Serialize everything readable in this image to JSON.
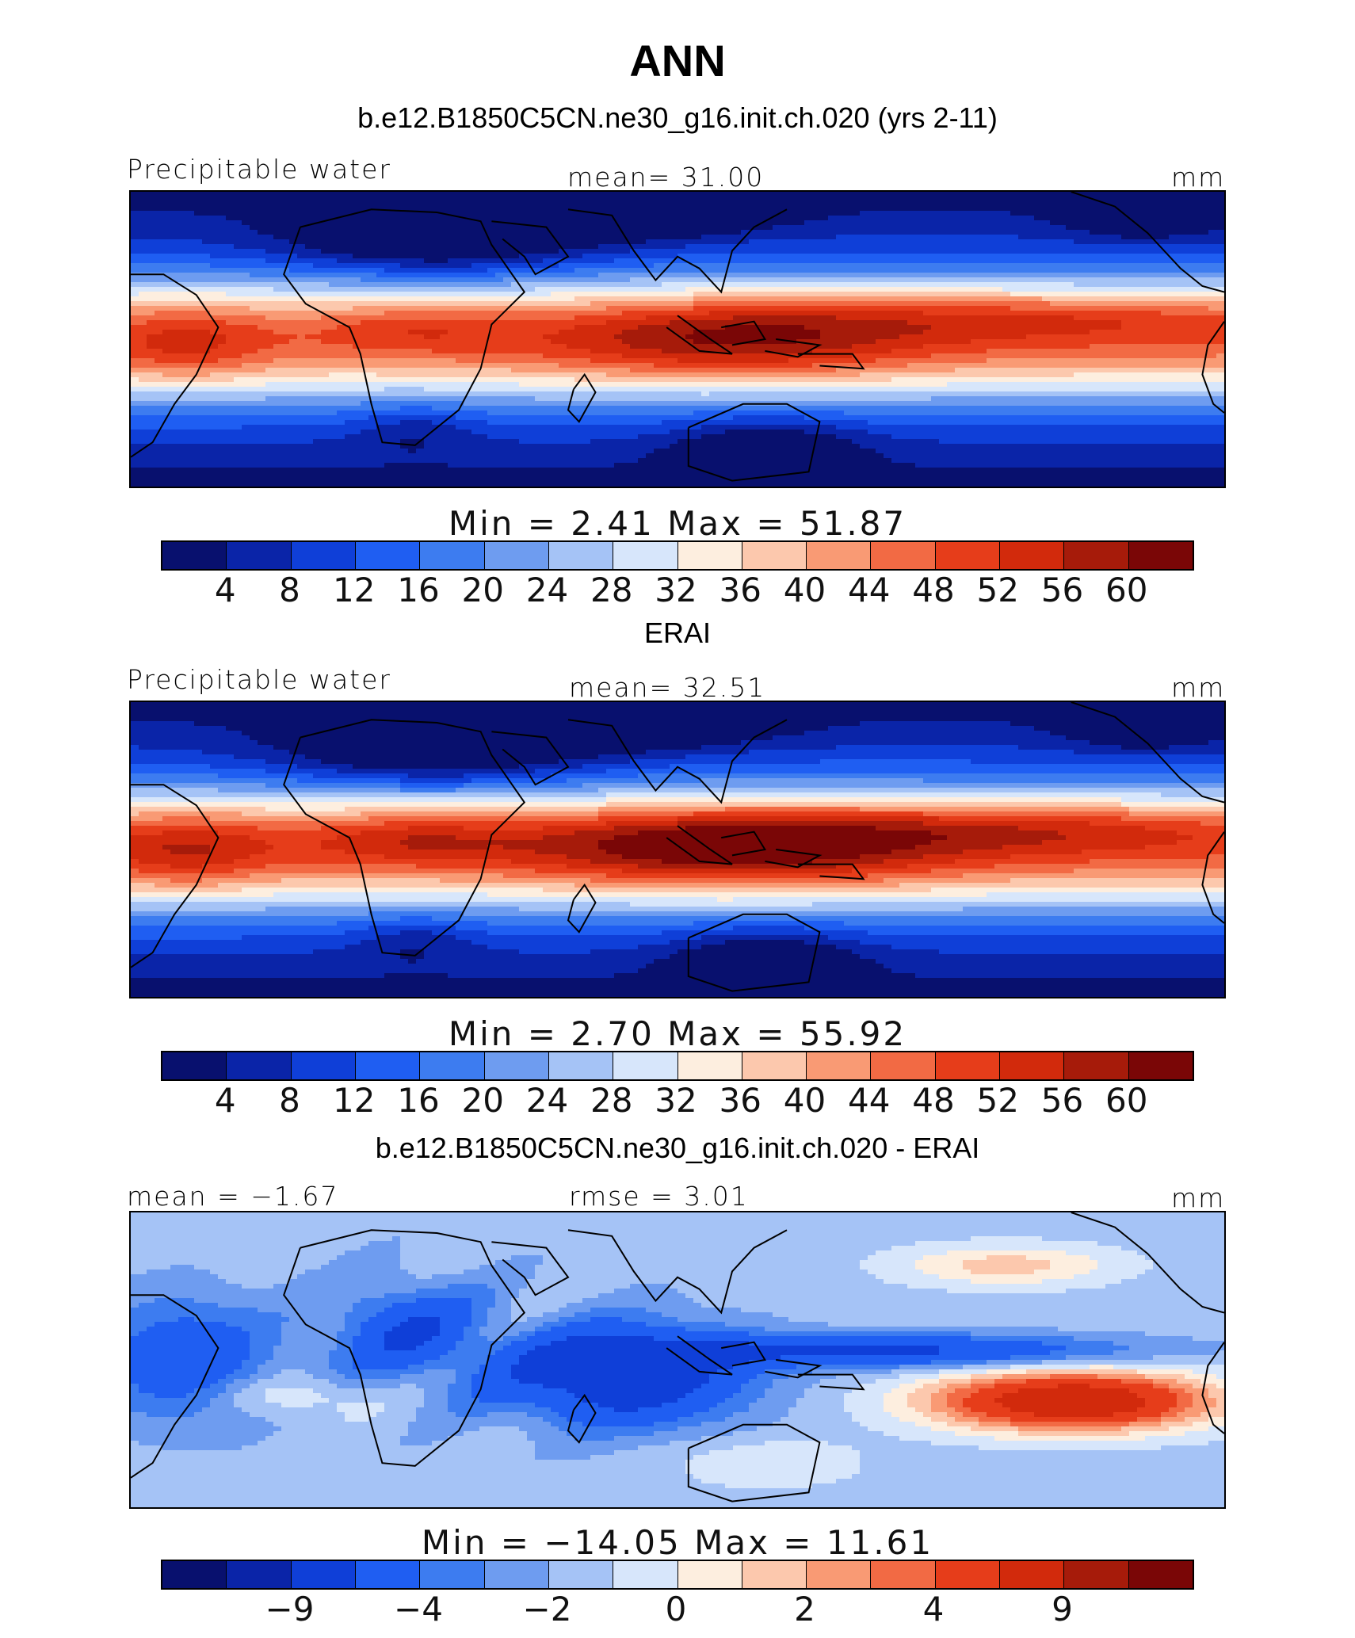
{
  "figure": {
    "title": "ANN"
  },
  "panels": [
    {
      "header": "b.e12.B1850C5CN.ne30_g16.init.ch.020 (yrs 2-11)",
      "left_label": "Precipitable water",
      "center_label": "mean=  31.00",
      "right_label": "mm",
      "stats": "Min =   2.41 Max =  51.87",
      "colorbar": {
        "ticks": [
          "4",
          "8",
          "12",
          "16",
          "20",
          "24",
          "28",
          "32",
          "36",
          "40",
          "44",
          "48",
          "52",
          "56",
          "60"
        ]
      },
      "field": "model"
    },
    {
      "header": "ERAI",
      "left_label": "Precipitable water",
      "center_label": "mean=  32.51",
      "right_label": "mm",
      "stats": "Min =   2.70 Max =  55.92",
      "colorbar": {
        "ticks": [
          "4",
          "8",
          "12",
          "16",
          "20",
          "24",
          "28",
          "32",
          "36",
          "40",
          "44",
          "48",
          "52",
          "56",
          "60"
        ]
      },
      "field": "obs"
    },
    {
      "header": "b.e12.B1850C5CN.ne30_g16.init.ch.020 - ERAI",
      "left_label": "mean =  −1.67",
      "center_label": "rmse =   3.01",
      "right_label": "mm",
      "stats": "Min = −14.05 Max =  11.61",
      "colorbar": {
        "ticks": [
          "−9",
          "−4",
          "−2",
          "0",
          "2",
          "4",
          "9"
        ]
      },
      "field": "diff"
    }
  ],
  "colors": {
    "palette": [
      "#08106e",
      "#0a24a8",
      "#0f3fd8",
      "#1f5ef2",
      "#3d7cf0",
      "#6e9cf0",
      "#a5c3f6",
      "#d7e6fb",
      "#fdeedf",
      "#fcc8ad",
      "#f99a74",
      "#f26a44",
      "#e63d1a",
      "#d22a0c",
      "#a61b0a",
      "#7a0606"
    ]
  }
}
